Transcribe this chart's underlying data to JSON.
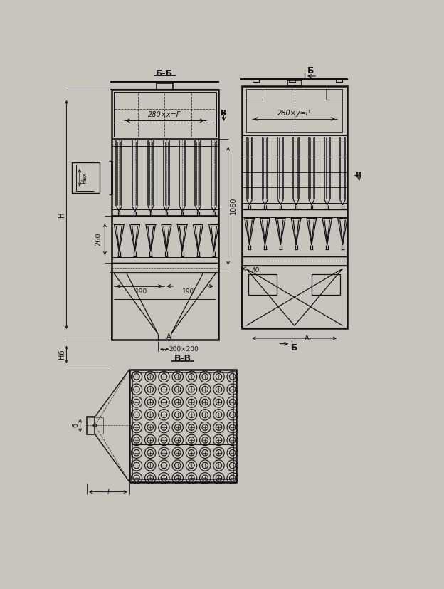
{
  "bg_color": "#c8c5be",
  "lc": "#111111",
  "dc": "#333333",
  "fig_w": 6.24,
  "fig_h": 8.27,
  "dpi": 100,
  "labels": {
    "bb": "Б-Б",
    "vv": "В-В",
    "B_top": "Б",
    "B_bot": "Б",
    "V_left": "В",
    "V_right": "В",
    "dim1": "280×х=Г",
    "dim2": "280×y=P",
    "d260": "260",
    "d190": "190",
    "dA": "A",
    "d200": "200×200",
    "d1060": "1060",
    "d40": "40",
    "dA2": "A₂",
    "dH": "H",
    "dHvx": "Hвх",
    "dHb": "Hб",
    "db": "б",
    "dl": "l"
  }
}
